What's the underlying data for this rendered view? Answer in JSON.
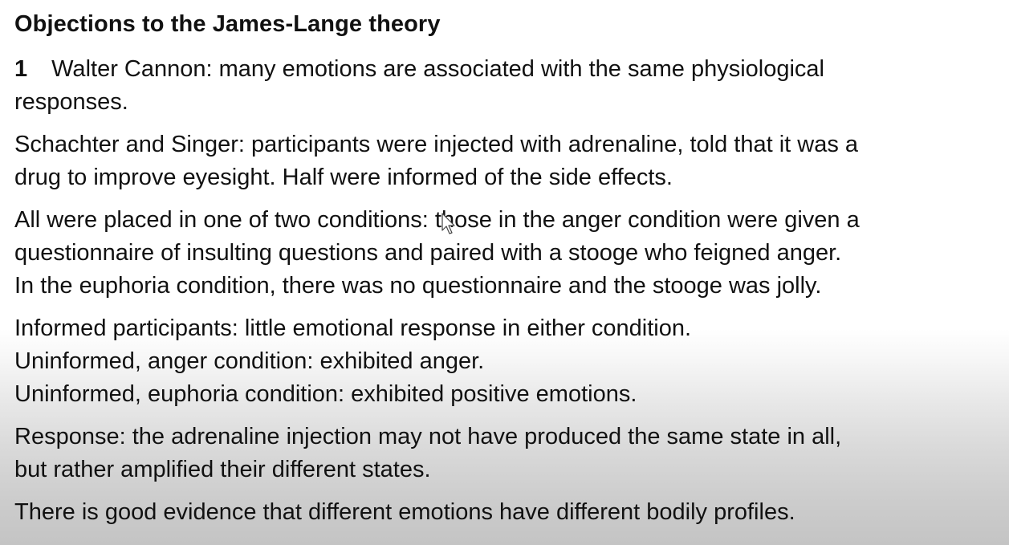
{
  "title": "Objections to the James-Lange theory",
  "paragraphs": [
    {
      "number": "1",
      "lines": [
        "Walter Cannon: many emotions are associated with the same physiological",
        "responses."
      ]
    },
    {
      "lines": [
        "Schachter and Singer: participants were injected with adrenaline, told that it was a",
        "drug to improve eyesight. Half were informed of the side effects."
      ]
    },
    {
      "lines": [
        "All were placed in one of two conditions: those in the anger condition were given a",
        "questionnaire of insulting questions and paired with a stooge who feigned anger.",
        "In the euphoria condition, there was no questionnaire and the stooge was jolly."
      ]
    },
    {
      "lines": [
        "Informed participants: little emotional response in either condition.",
        "Uninformed, anger condition: exhibited anger.",
        "Uninformed, euphoria condition: exhibited positive emotions."
      ]
    },
    {
      "lines": [
        "Response: the adrenaline injection may not have produced the same state in all,",
        "but rather amplified their different states."
      ]
    },
    {
      "lines": [
        "There is good evidence that different emotions have different bodily profiles."
      ]
    }
  ]
}
